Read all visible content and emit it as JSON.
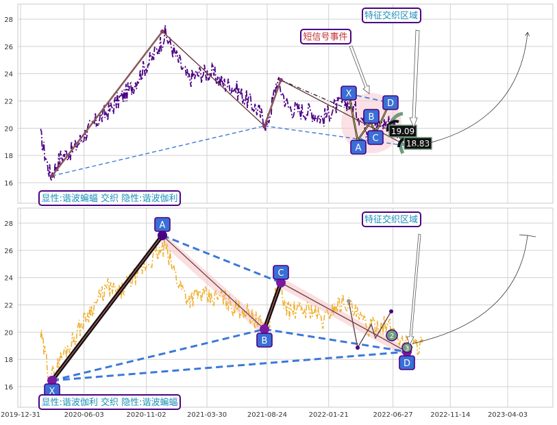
{
  "x_tick_labels": [
    "2019-12-31",
    "2020-06-03",
    "2020-11-02",
    "2021-03-30",
    "2021-08-24",
    "2022-01-21",
    "2022-06-27",
    "2022-11-14",
    "2023-04-03"
  ],
  "colors": {
    "top_price": "#4b0082",
    "bottom_price": "#f0b030",
    "pattern_line": "#6b3f3f",
    "dashed": "#3a78d8",
    "label_box_bg": "#3a6fd6",
    "label_box_border": "#4b0082",
    "annot_blue": "#1a8fb8",
    "annot_red": "#c03030"
  },
  "chart_data": [
    {
      "type": "line",
      "panel": "top",
      "ylim": [
        14.8,
        29
      ],
      "yticks": [
        16,
        18,
        20,
        22,
        24,
        26,
        28
      ],
      "grid": true,
      "annotations": {
        "region": "特征交织区域",
        "short_signal": "短信号事件",
        "legend_text": "显性:谐波蝙蝠 交织 隐性:谐波伽利",
        "price_labels": [
          "19.09",
          "18.83"
        ]
      },
      "series": [
        {
          "x": [
            "2020-02-18",
            "2020-03-13",
            "2020-04-09",
            "2020-05-08",
            "2020-06-05",
            "2020-07-03",
            "2020-07-31",
            "2020-08-28",
            "2020-09-25",
            "2020-10-23",
            "2020-11-20",
            "2020-12-18",
            "2021-01-15",
            "2021-02-12",
            "2021-03-12",
            "2021-04-09",
            "2021-05-07",
            "2021-06-04",
            "2021-07-02",
            "2021-07-30",
            "2021-08-24",
            "2021-09-17",
            "2021-10-15",
            "2021-11-12",
            "2021-12-10",
            "2022-01-07",
            "2022-02-04",
            "2022-03-04",
            "2022-04-01",
            "2022-04-29",
            "2022-05-27",
            "2022-06-24",
            "2022-07-22",
            "2022-08-19"
          ],
          "values": [
            19.4,
            16.5,
            18.0,
            18.4,
            19.6,
            20.5,
            21.2,
            22.1,
            22.9,
            24.2,
            25.3,
            26.9,
            25.2,
            23.6,
            24.0,
            24.1,
            23.3,
            23.0,
            22.2,
            21.4,
            20.2,
            23.5,
            21.5,
            21.3,
            21.2,
            20.7,
            21.5,
            22.0,
            21.2,
            20.0,
            20.3,
            20.5,
            19.2,
            18.9
          ]
        }
      ],
      "points": {
        "X": [
          "2022-04-08",
          22.5
        ],
        "A": [
          "2022-04-29",
          18.5
        ],
        "B": [
          "2022-05-13",
          20.8
        ],
        "C": [
          "2022-05-27",
          19.3
        ],
        "D": [
          "2022-06-24",
          21.8
        ]
      },
      "big_points": {
        "X": [
          "2020-03-13",
          16.5
        ],
        "A": [
          "2020-12-04",
          27.0
        ],
        "B": [
          "2021-08-10",
          20.2
        ],
        "C": [
          "2021-09-17",
          23.5
        ],
        "D": [
          "2022-08-12",
          18.7
        ]
      }
    },
    {
      "type": "line",
      "panel": "bottom",
      "ylim": [
        14.8,
        29
      ],
      "yticks": [
        16,
        18,
        20,
        22,
        24,
        26,
        28
      ],
      "grid": true,
      "annotations": {
        "region": "特征交织区域",
        "legend_text": "显性:谐波伽利 交织 隐性:谐波蝙蝠",
        "small_labels": [
          "2",
          "3"
        ]
      },
      "series": [
        {
          "x": [
            "2020-02-18",
            "2020-03-13",
            "2020-04-09",
            "2020-05-08",
            "2020-06-05",
            "2020-07-03",
            "2020-07-31",
            "2020-08-28",
            "2020-09-25",
            "2020-10-23",
            "2020-11-20",
            "2020-12-18",
            "2021-01-15",
            "2021-02-12",
            "2021-03-12",
            "2021-04-09",
            "2021-05-07",
            "2021-06-04",
            "2021-07-02",
            "2021-07-30",
            "2021-08-24",
            "2021-09-17",
            "2021-10-15",
            "2021-11-12",
            "2021-12-10",
            "2022-01-07",
            "2022-02-04",
            "2022-03-04",
            "2022-04-01",
            "2022-04-29",
            "2022-05-27",
            "2022-06-24",
            "2022-07-22",
            "2022-08-19",
            "2022-09-09"
          ],
          "values": [
            19.8,
            16.5,
            18.2,
            19.5,
            21.0,
            22.2,
            23.3,
            22.8,
            23.8,
            24.6,
            25.5,
            26.2,
            24.0,
            22.4,
            22.8,
            22.4,
            22.6,
            21.8,
            21.6,
            20.8,
            20.2,
            23.3,
            21.6,
            21.6,
            21.7,
            20.8,
            21.9,
            22.3,
            21.2,
            20.3,
            20.6,
            20.3,
            19.2,
            19.0,
            19.2
          ]
        }
      ],
      "points": {
        "X": [
          "2020-03-13",
          16.5
        ],
        "A": [
          "2020-12-04",
          27.0
        ],
        "B": [
          "2021-08-10",
          20.1
        ],
        "C": [
          "2021-09-17",
          23.5
        ],
        "D": [
          "2022-08-12",
          18.6
        ]
      }
    }
  ]
}
